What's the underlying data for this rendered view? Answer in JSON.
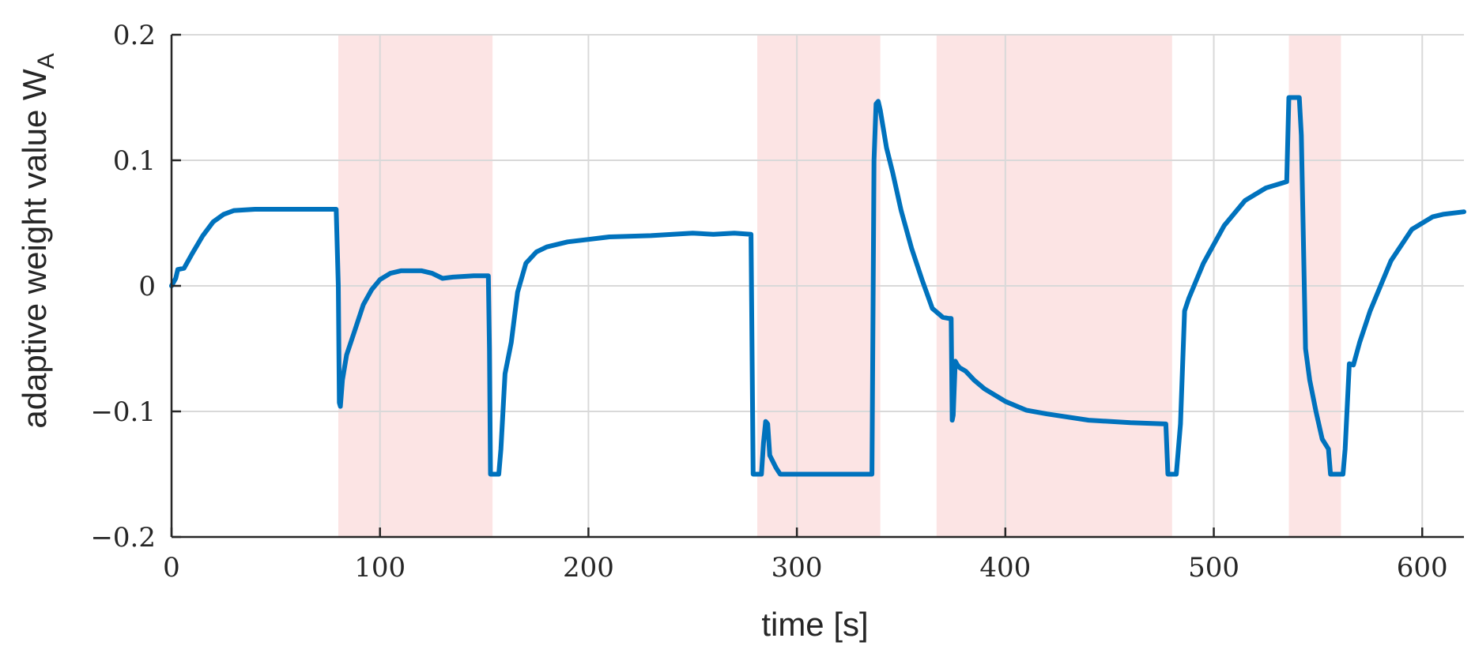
{
  "chart_data": {
    "type": "line",
    "xlabel": "time [s]",
    "ylabel_main": "adaptive weight value W",
    "ylabel_sub": "A",
    "xlim": [
      0,
      620
    ],
    "ylim": [
      -0.2,
      0.2
    ],
    "grid": true,
    "xticks": [
      0,
      100,
      200,
      300,
      400,
      500,
      600
    ],
    "yticks": [
      -0.2,
      -0.1,
      0,
      0.1,
      0.2
    ],
    "xtick_labels": [
      "0",
      "100",
      "200",
      "300",
      "400",
      "500",
      "600"
    ],
    "ytick_labels": [
      "−0.2",
      "−0.1",
      "0",
      "0.1",
      "0.2"
    ],
    "shaded_intervals": [
      [
        80,
        154
      ],
      [
        281,
        340
      ],
      [
        367,
        480
      ],
      [
        536,
        561
      ]
    ],
    "colors": {
      "line": "#0072BD",
      "shade": "#FCE4E4",
      "grid": "#D9D9D9",
      "axis": "#262626"
    },
    "series": [
      {
        "values": [
          [
            0,
            0
          ],
          [
            2,
            0.006
          ],
          [
            3,
            0.013
          ],
          [
            6,
            0.014
          ],
          [
            10,
            0.026
          ],
          [
            15,
            0.04
          ],
          [
            20,
            0.051
          ],
          [
            25,
            0.057
          ],
          [
            30,
            0.06
          ],
          [
            40,
            0.061
          ],
          [
            60,
            0.061
          ],
          [
            75,
            0.061
          ],
          [
            79,
            0.061
          ],
          [
            80,
            0.0
          ],
          [
            80.5,
            -0.093
          ],
          [
            81,
            -0.096
          ],
          [
            82,
            -0.075
          ],
          [
            84,
            -0.055
          ],
          [
            88,
            -0.035
          ],
          [
            92,
            -0.015
          ],
          [
            96,
            -0.003
          ],
          [
            100,
            0.005
          ],
          [
            105,
            0.01
          ],
          [
            110,
            0.012
          ],
          [
            120,
            0.012
          ],
          [
            125,
            0.01
          ],
          [
            130,
            0.006
          ],
          [
            135,
            0.007
          ],
          [
            145,
            0.008
          ],
          [
            152,
            0.008
          ],
          [
            152.5,
            -0.05
          ],
          [
            153,
            -0.15
          ],
          [
            157,
            -0.15
          ],
          [
            158,
            -0.13
          ],
          [
            160,
            -0.07
          ],
          [
            163,
            -0.045
          ],
          [
            166,
            -0.005
          ],
          [
            170,
            0.018
          ],
          [
            175,
            0.027
          ],
          [
            180,
            0.031
          ],
          [
            190,
            0.035
          ],
          [
            200,
            0.037
          ],
          [
            210,
            0.039
          ],
          [
            230,
            0.04
          ],
          [
            250,
            0.042
          ],
          [
            260,
            0.041
          ],
          [
            270,
            0.042
          ],
          [
            278,
            0.041
          ],
          [
            279,
            -0.15
          ],
          [
            283,
            -0.15
          ],
          [
            284,
            -0.125
          ],
          [
            285,
            -0.108
          ],
          [
            286,
            -0.11
          ],
          [
            287,
            -0.135
          ],
          [
            290,
            -0.145
          ],
          [
            292,
            -0.15
          ],
          [
            335,
            -0.15
          ],
          [
            336,
            -0.15
          ],
          [
            337,
            0.1
          ],
          [
            338,
            0.145
          ],
          [
            339,
            0.147
          ],
          [
            340,
            0.14
          ],
          [
            343,
            0.11
          ],
          [
            346,
            0.09
          ],
          [
            350,
            0.06
          ],
          [
            355,
            0.03
          ],
          [
            360,
            0.005
          ],
          [
            365,
            -0.018
          ],
          [
            370,
            -0.025
          ],
          [
            373,
            -0.026
          ],
          [
            374,
            -0.026
          ],
          [
            374.5,
            -0.107
          ],
          [
            375,
            -0.103
          ],
          [
            376,
            -0.06
          ],
          [
            377,
            -0.063
          ],
          [
            378,
            -0.065
          ],
          [
            381,
            -0.068
          ],
          [
            385,
            -0.075
          ],
          [
            390,
            -0.082
          ],
          [
            400,
            -0.092
          ],
          [
            410,
            -0.099
          ],
          [
            420,
            -0.102
          ],
          [
            440,
            -0.107
          ],
          [
            460,
            -0.109
          ],
          [
            477,
            -0.11
          ],
          [
            478,
            -0.15
          ],
          [
            482,
            -0.15
          ],
          [
            484,
            -0.11
          ],
          [
            486,
            -0.02
          ],
          [
            488,
            -0.01
          ],
          [
            495,
            0.018
          ],
          [
            505,
            0.048
          ],
          [
            515,
            0.068
          ],
          [
            525,
            0.078
          ],
          [
            533,
            0.082
          ],
          [
            535,
            0.083
          ],
          [
            536,
            0.15
          ],
          [
            541,
            0.15
          ],
          [
            542,
            0.12
          ],
          [
            544,
            -0.05
          ],
          [
            546,
            -0.075
          ],
          [
            549,
            -0.1
          ],
          [
            552,
            -0.122
          ],
          [
            555,
            -0.13
          ],
          [
            556,
            -0.15
          ],
          [
            562,
            -0.15
          ],
          [
            563,
            -0.13
          ],
          [
            565,
            -0.062
          ],
          [
            567,
            -0.063
          ],
          [
            570,
            -0.045
          ],
          [
            575,
            -0.02
          ],
          [
            585,
            0.02
          ],
          [
            595,
            0.045
          ],
          [
            605,
            0.055
          ],
          [
            610,
            0.057
          ],
          [
            620,
            0.059
          ]
        ]
      }
    ]
  }
}
